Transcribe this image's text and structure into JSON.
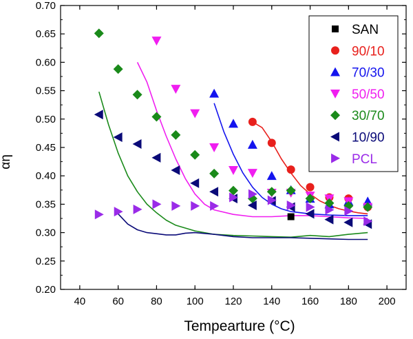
{
  "chart_data": {
    "type": "scatter",
    "title": "",
    "xlabel": "Tempearture (°C)",
    "ylabel": "αη",
    "xlim": [
      30,
      210
    ],
    "ylim": [
      0.2,
      0.7
    ],
    "x_ticks": [
      "40",
      "60",
      "80",
      "100",
      "120",
      "140",
      "160",
      "180",
      "200"
    ],
    "y_ticks": [
      "0.20",
      "0.25",
      "0.30",
      "0.35",
      "0.40",
      "0.45",
      "0.50",
      "0.55",
      "0.60",
      "0.65",
      "0.70"
    ],
    "legend": {
      "position": "top-right",
      "framed": true
    },
    "series": [
      {
        "name": "SAN",
        "marker": "square",
        "color": "#000000",
        "x": [
          150
        ],
        "y": [
          0.328
        ],
        "fit": null
      },
      {
        "name": "90/10",
        "marker": "circle",
        "color": "#e8201c",
        "x": [
          130,
          140,
          150,
          160,
          170,
          180,
          190
        ],
        "y": [
          0.495,
          0.458,
          0.411,
          0.38,
          0.362,
          0.36,
          0.345
        ],
        "fit": {
          "x": [
            130,
            135,
            140,
            145,
            150,
            155,
            160,
            165,
            170,
            175,
            180,
            185,
            190
          ],
          "y": [
            0.495,
            0.485,
            0.46,
            0.43,
            0.405,
            0.383,
            0.368,
            0.356,
            0.348,
            0.342,
            0.338,
            0.335,
            0.333
          ]
        }
      },
      {
        "name": "70/30",
        "marker": "triangle-up",
        "color": "#1414ee",
        "x": [
          110,
          120,
          130,
          140,
          150,
          160,
          170,
          180,
          190
        ],
        "y": [
          0.545,
          0.492,
          0.455,
          0.4,
          0.375,
          0.36,
          0.35,
          0.355,
          0.355
        ],
        "fit": {
          "x": [
            110,
            115,
            120,
            125,
            130,
            135,
            140,
            145,
            150,
            160,
            170,
            180,
            190
          ],
          "y": [
            0.528,
            0.478,
            0.438,
            0.405,
            0.38,
            0.362,
            0.35,
            0.342,
            0.337,
            0.333,
            0.331,
            0.33,
            0.33
          ]
        }
      },
      {
        "name": "50/50",
        "marker": "triangle-down",
        "color": "#f01ef0",
        "x": [
          80,
          90,
          100,
          110,
          120,
          130,
          140,
          150,
          160,
          170,
          180,
          190
        ],
        "y": [
          0.638,
          0.553,
          0.51,
          0.45,
          0.41,
          0.405,
          0.37,
          0.37,
          0.365,
          0.36,
          0.355,
          0.345
        ],
        "fit": {
          "x": [
            70,
            75,
            80,
            85,
            90,
            95,
            100,
            105,
            110,
            120,
            130,
            140,
            150,
            160,
            170,
            180,
            190
          ],
          "y": [
            0.6,
            0.565,
            0.515,
            0.47,
            0.43,
            0.395,
            0.368,
            0.35,
            0.34,
            0.332,
            0.328,
            0.328,
            0.33,
            0.33,
            0.328,
            0.326,
            0.325
          ]
        }
      },
      {
        "name": "30/70",
        "marker": "diamond",
        "color": "#1a8a1a",
        "x": [
          50,
          60,
          70,
          80,
          90,
          100,
          110,
          120,
          130,
          140,
          150,
          160,
          170,
          180,
          190
        ],
        "y": [
          0.651,
          0.588,
          0.543,
          0.504,
          0.472,
          0.437,
          0.404,
          0.374,
          0.36,
          0.372,
          0.374,
          0.36,
          0.352,
          0.347,
          0.345
        ],
        "fit": {
          "x": [
            50,
            55,
            60,
            65,
            70,
            75,
            80,
            85,
            90,
            100,
            110,
            120,
            130,
            140,
            150,
            160,
            170,
            180,
            190
          ],
          "y": [
            0.548,
            0.49,
            0.44,
            0.4,
            0.372,
            0.35,
            0.335,
            0.322,
            0.313,
            0.303,
            0.297,
            0.295,
            0.294,
            0.293,
            0.292,
            0.295,
            0.293,
            0.297,
            0.3
          ]
        }
      },
      {
        "name": "10/90",
        "marker": "triangle-left",
        "color": "#0a0a78",
        "x": [
          50,
          60,
          70,
          80,
          90,
          100,
          110,
          120,
          130,
          140,
          150,
          160,
          170,
          180,
          190
        ],
        "y": [
          0.508,
          0.468,
          0.456,
          0.432,
          0.41,
          0.387,
          0.372,
          0.36,
          0.348,
          0.356,
          0.345,
          0.333,
          0.323,
          0.318,
          0.315
        ],
        "fit": {
          "x": [
            60,
            65,
            70,
            75,
            80,
            85,
            90,
            95,
            100,
            110,
            120,
            130,
            140,
            150,
            160,
            170,
            180,
            190
          ],
          "y": [
            0.333,
            0.315,
            0.305,
            0.3,
            0.298,
            0.296,
            0.296,
            0.299,
            0.3,
            0.297,
            0.293,
            0.291,
            0.291,
            0.291,
            0.29,
            0.289,
            0.288,
            0.288
          ]
        }
      },
      {
        "name": "PCL",
        "marker": "triangle-right",
        "color": "#9a2be8",
        "x": [
          50,
          60,
          70,
          80,
          90,
          100,
          110,
          120,
          130,
          140,
          150,
          160,
          170,
          180,
          190
        ],
        "y": [
          0.332,
          0.337,
          0.341,
          0.35,
          0.347,
          0.347,
          0.347,
          0.362,
          0.368,
          0.357,
          0.348,
          0.345,
          0.34,
          0.338,
          0.32
        ],
        "fit": null
      }
    ]
  }
}
